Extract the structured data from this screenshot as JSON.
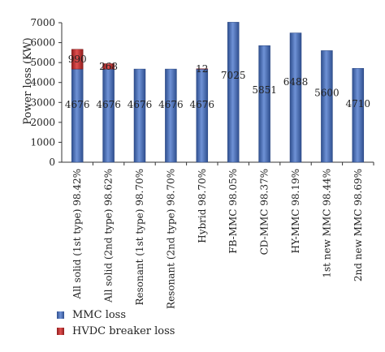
{
  "chart_data": {
    "type": "bar",
    "stacked": true,
    "ylabel": "Power loss (KW)",
    "ylim": [
      0,
      7000
    ],
    "yticks": [
      "0",
      "1000",
      "2000",
      "3000",
      "4000",
      "5000",
      "6000",
      "7000"
    ],
    "grid": false,
    "legend_position": "bottom-left",
    "categories": [
      "All solid (1st type) 98.42%",
      "All solid (2nd type) 98.62%",
      "Resonant (1st type) 98.70%",
      "Resonant (2nd type) 98.70%",
      "Hybrid 98.70%",
      "FB-MMC 98.05%",
      "CD-MMC 98.37%",
      "HY-MMC 98.19%",
      "1st new MMC 98.44%",
      "2nd new MMC 98.69%"
    ],
    "series": [
      {
        "name": "MMC loss",
        "color": "#4a6fb5",
        "values": [
          4676,
          4676,
          4676,
          4676,
          4676,
          7025,
          5851,
          6488,
          5600,
          4710
        ],
        "labels": [
          "4676",
          "4676",
          "4676",
          "4676",
          "4676",
          "7025",
          "5851",
          "6488",
          "5600",
          "4710"
        ]
      },
      {
        "name": "HVDC breaker loss",
        "color": "#c62828",
        "values": [
          990,
          268,
          0,
          0,
          12,
          0,
          0,
          0,
          0,
          0
        ],
        "labels": [
          "990",
          "268",
          "",
          "",
          "12",
          "",
          "",
          "",
          "",
          ""
        ]
      }
    ]
  },
  "legend": {
    "items": [
      {
        "label": "MMC loss",
        "color": "#4a6fb5"
      },
      {
        "label": "HVDC breaker loss",
        "color": "#c62828"
      }
    ]
  }
}
